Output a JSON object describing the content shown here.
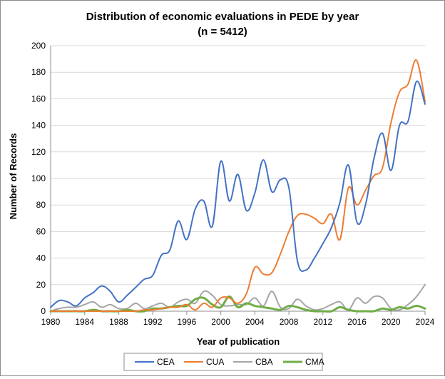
{
  "chart_data": {
    "type": "line",
    "title": "Distribution of economic evaluations in PEDE by year",
    "subtitle": "(n = 5412)",
    "xlabel": "Year of publication",
    "ylabel": "Number of Records",
    "xlim": [
      1980,
      2024
    ],
    "ylim": [
      0,
      200
    ],
    "xticks": [
      1980,
      1984,
      1988,
      1992,
      1996,
      2000,
      2004,
      2008,
      2012,
      2016,
      2020,
      2024
    ],
    "yticks": [
      0,
      20,
      40,
      60,
      80,
      100,
      120,
      140,
      160,
      180,
      200
    ],
    "grid": "horizontal",
    "legend_position": "bottom",
    "x": [
      1980,
      1981,
      1982,
      1983,
      1984,
      1985,
      1986,
      1987,
      1988,
      1989,
      1990,
      1991,
      1992,
      1993,
      1994,
      1995,
      1996,
      1997,
      1998,
      1999,
      2000,
      2001,
      2002,
      2003,
      2004,
      2005,
      2006,
      2007,
      2008,
      2009,
      2010,
      2011,
      2012,
      2013,
      2014,
      2015,
      2016,
      2017,
      2018,
      2019,
      2020,
      2021,
      2022,
      2023,
      2024
    ],
    "series": [
      {
        "name": "CEA",
        "color": "#4472C4",
        "values": [
          3,
          8,
          7,
          4,
          10,
          14,
          19,
          15,
          7,
          12,
          18,
          24,
          27,
          42,
          46,
          68,
          54,
          77,
          83,
          64,
          113,
          83,
          103,
          76,
          89,
          114,
          90,
          99,
          93,
          38,
          31,
          40,
          51,
          63,
          82,
          110,
          67,
          80,
          115,
          134,
          106,
          140,
          143,
          173,
          156
        ]
      },
      {
        "name": "CUA",
        "color": "#ED7D31",
        "values": [
          0,
          0,
          0,
          0,
          0,
          0,
          0,
          0,
          0,
          0,
          0,
          1,
          1,
          2,
          3,
          3,
          5,
          1,
          6,
          3,
          10,
          10,
          6,
          13,
          33,
          28,
          29,
          43,
          60,
          72,
          73,
          70,
          66,
          73,
          54,
          93,
          80,
          91,
          102,
          108,
          142,
          165,
          171,
          189,
          158
        ]
      },
      {
        "name": "CBA",
        "color": "#A5A5A5",
        "values": [
          0,
          2,
          3,
          3,
          5,
          7,
          3,
          5,
          2,
          2,
          6,
          2,
          4,
          6,
          3,
          7,
          9,
          6,
          15,
          12,
          5,
          4,
          5,
          5,
          10,
          4,
          15,
          3,
          2,
          9,
          4,
          1,
          2,
          5,
          7,
          1,
          10,
          6,
          11,
          10,
          2,
          1,
          5,
          11,
          20
        ]
      },
      {
        "name": "CMA",
        "color": "#70AD47",
        "values": [
          0,
          0,
          0,
          0,
          0,
          1,
          0,
          0,
          0,
          1,
          0,
          0,
          2,
          2,
          3,
          4,
          4,
          9,
          10,
          5,
          3,
          11,
          3,
          6,
          4,
          3,
          2,
          1,
          4,
          3,
          1,
          0,
          0,
          0,
          3,
          1,
          0,
          0,
          0,
          2,
          1,
          3,
          2,
          4,
          2
        ]
      }
    ]
  }
}
